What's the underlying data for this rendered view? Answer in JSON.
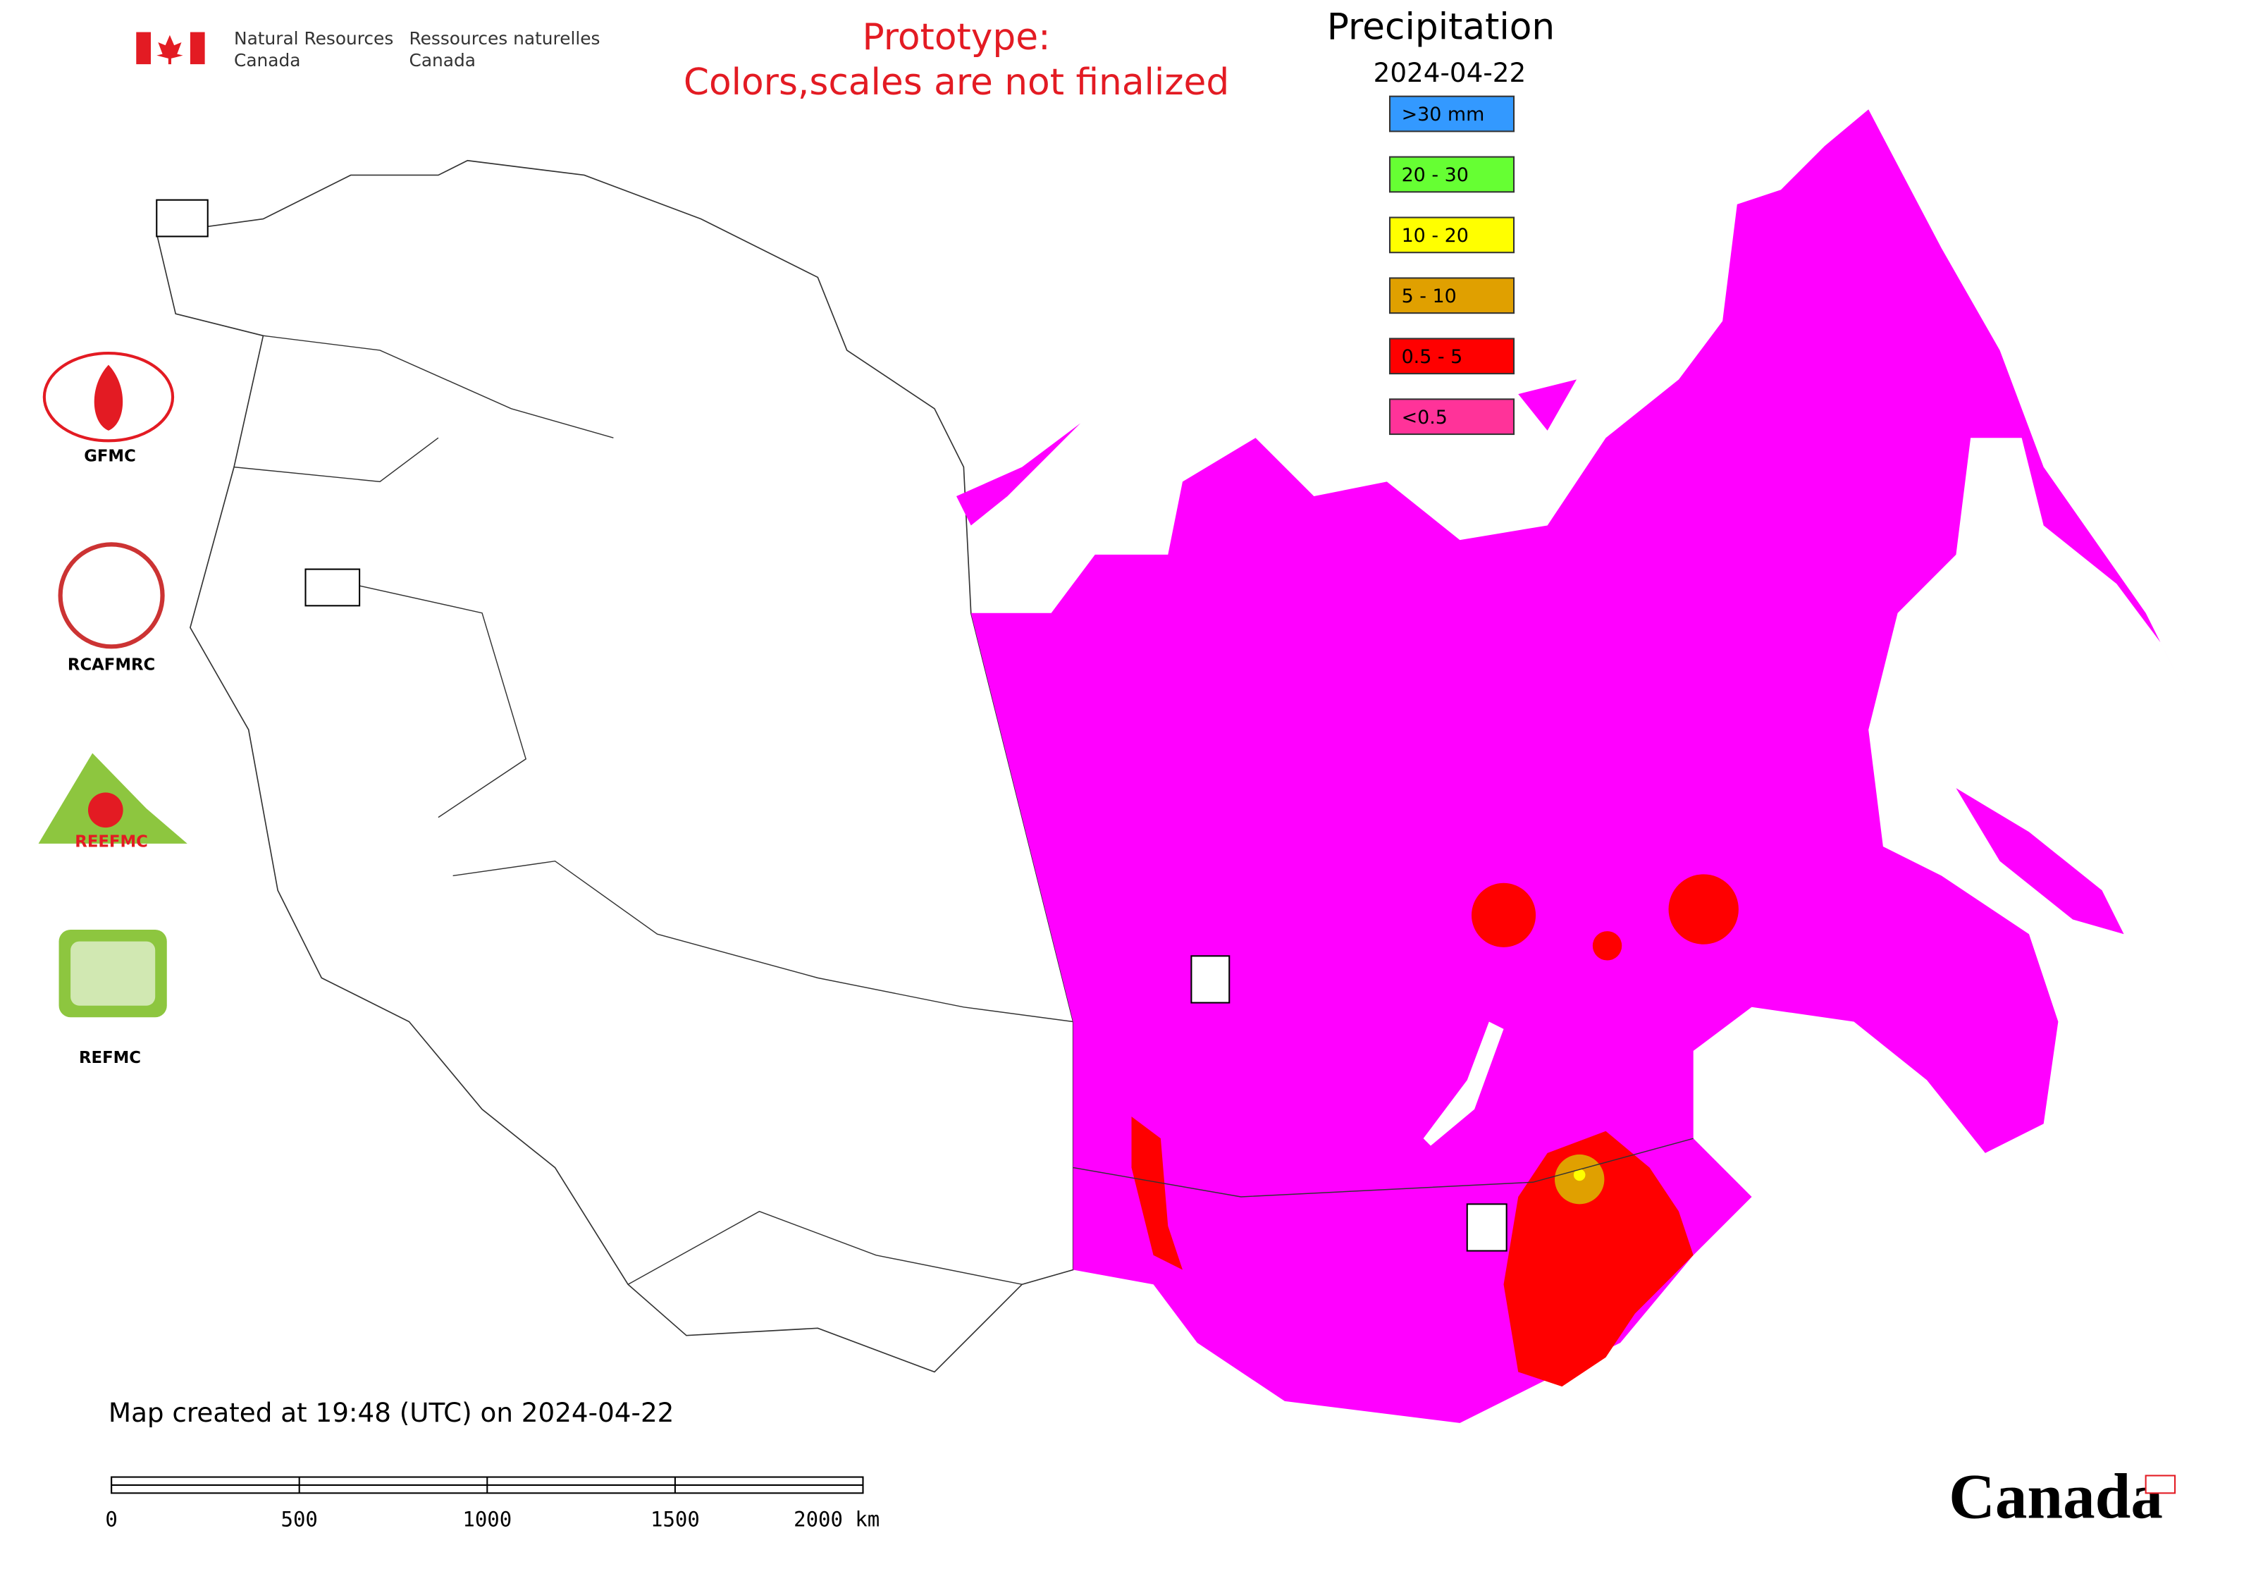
{
  "header": {
    "department_en": [
      "Natural Resources",
      "Canada"
    ],
    "department_fr": [
      "Ressources naturelles",
      "Canada"
    ],
    "notice": [
      "Prototype:",
      "Colors,scales are not finalized"
    ]
  },
  "legend": {
    "title": "Precipitation",
    "date": "2024-04-22",
    "entries": [
      {
        "label": ">30 mm",
        "color": "#3399ff"
      },
      {
        "label": "20 - 30",
        "color": "#66ff33"
      },
      {
        "label": "10 - 20",
        "color": "#ffff00"
      },
      {
        "label": "5 - 10",
        "color": "#e0a000"
      },
      {
        "label": "0.5 - 5",
        "color": "#ff0000"
      },
      {
        "label": "<0.5",
        "color": "#ff3399"
      }
    ]
  },
  "logos": [
    "GFMC",
    "RCAFMRC",
    "REEFMC",
    "REFMC"
  ],
  "footer": {
    "created": "Map created at 19:48 (UTC) on 2024-04-22",
    "scale_labels": [
      "0",
      "500",
      "1000",
      "1500",
      "2000 km"
    ],
    "wordmark": "Canada"
  }
}
